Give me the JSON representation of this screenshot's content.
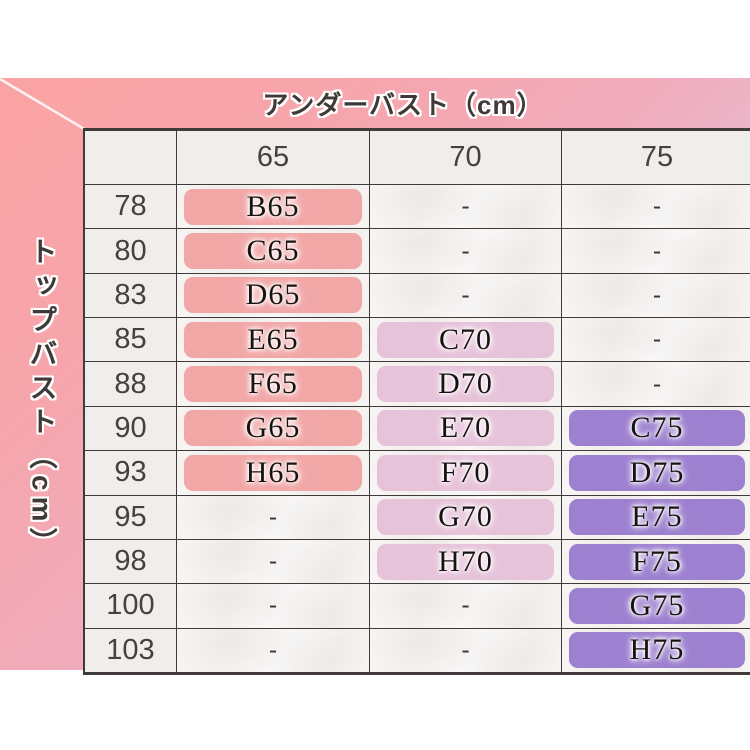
{
  "chart_data": {
    "type": "table",
    "title": "アンダーバスト（cm）",
    "row_axis_label": "トップバスト（cm）",
    "columns": [
      "65",
      "70",
      "75"
    ],
    "row_labels": [
      "78",
      "80",
      "83",
      "85",
      "88",
      "90",
      "93",
      "95",
      "98",
      "100",
      "103"
    ],
    "cells": [
      [
        "B65",
        "-",
        "-"
      ],
      [
        "C65",
        "-",
        "-"
      ],
      [
        "D65",
        "-",
        "-"
      ],
      [
        "E65",
        "C70",
        "-"
      ],
      [
        "F65",
        "D70",
        "-"
      ],
      [
        "G65",
        "E70",
        "C75"
      ],
      [
        "H65",
        "F70",
        "D75"
      ],
      [
        "-",
        "G70",
        "E75"
      ],
      [
        "-",
        "H70",
        "F75"
      ],
      [
        "-",
        "-",
        "G75"
      ],
      [
        "-",
        "-",
        "H75"
      ]
    ],
    "empty_marker": "-",
    "legend_position": "none",
    "grid": true
  },
  "colors": {
    "pill_col_65": "#f2a7a7",
    "pill_col_70": "#e7c3da",
    "pill_col_75": "#9d80d0",
    "gradient_pink": "#fba3a4",
    "gradient_lavender": "#d6c9ec",
    "header_cell_bg": "#f0eeed",
    "grid_border": "#403a38",
    "pill_text": "#171310",
    "header_text": "#46403e"
  }
}
